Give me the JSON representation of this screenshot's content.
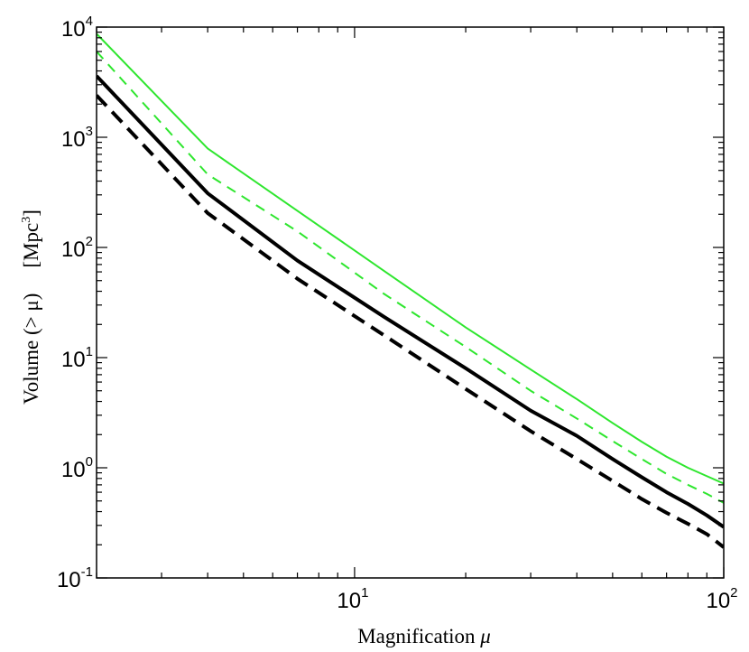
{
  "chart_data": {
    "type": "line",
    "xscale": "log",
    "yscale": "log",
    "xlim": [
      2,
      100
    ],
    "ylim": [
      0.1,
      10000
    ],
    "xlabel": {
      "text": "Magnification",
      "symbol": "μ"
    },
    "ylabel": {
      "text": "Volume (> μ)",
      "unit_prefix": "[Mpc",
      "unit_sup": "3",
      "unit_suffix": "]"
    },
    "x_ticks": [
      {
        "value": 10,
        "base": "10",
        "exp": "1"
      },
      {
        "value": 100,
        "base": "10",
        "exp": "2"
      }
    ],
    "y_ticks": [
      {
        "value": 0.1,
        "base": "10",
        "exp": "-1"
      },
      {
        "value": 1,
        "base": "10",
        "exp": "0"
      },
      {
        "value": 10,
        "base": "10",
        "exp": "1"
      },
      {
        "value": 100,
        "base": "10",
        "exp": "2"
      },
      {
        "value": 1000,
        "base": "10",
        "exp": "3"
      },
      {
        "value": 10000,
        "base": "10",
        "exp": "4"
      }
    ],
    "grid": false,
    "legend": false,
    "series": [
      {
        "color": "#2ee62e",
        "style": "solid",
        "width": 2,
        "x": [
          2,
          4,
          7,
          12,
          20,
          30,
          40,
          50,
          60,
          70,
          80,
          90,
          100
        ],
        "y": [
          8700,
          790,
          215,
          61.5,
          18.8,
          7.8,
          4.2,
          2.55,
          1.72,
          1.26,
          1.0,
          0.84,
          0.72
        ]
      },
      {
        "color": "#2ee62e",
        "style": "dashed",
        "width": 2,
        "x": [
          2,
          4,
          7,
          12,
          20,
          30,
          40,
          50,
          60,
          70,
          80,
          90,
          100
        ],
        "y": [
          6000,
          460,
          140,
          38,
          12.5,
          5.0,
          2.8,
          1.75,
          1.2,
          0.88,
          0.7,
          0.58,
          0.48
        ]
      },
      {
        "color": "#000000",
        "style": "solid",
        "width": 4,
        "x": [
          2,
          4,
          7,
          12,
          20,
          30,
          40,
          50,
          60,
          70,
          80,
          90,
          100
        ],
        "y": [
          3600,
          310,
          76,
          23.5,
          8.0,
          3.3,
          1.95,
          1.2,
          0.82,
          0.6,
          0.47,
          0.37,
          0.29
        ]
      },
      {
        "color": "#000000",
        "style": "dashed",
        "width": 4,
        "x": [
          2,
          4,
          7,
          12,
          20,
          30,
          40,
          50,
          60,
          70,
          80,
          90,
          100
        ],
        "y": [
          2400,
          205,
          52,
          16,
          5.2,
          2.15,
          1.2,
          0.76,
          0.52,
          0.39,
          0.31,
          0.25,
          0.19
        ]
      }
    ]
  }
}
